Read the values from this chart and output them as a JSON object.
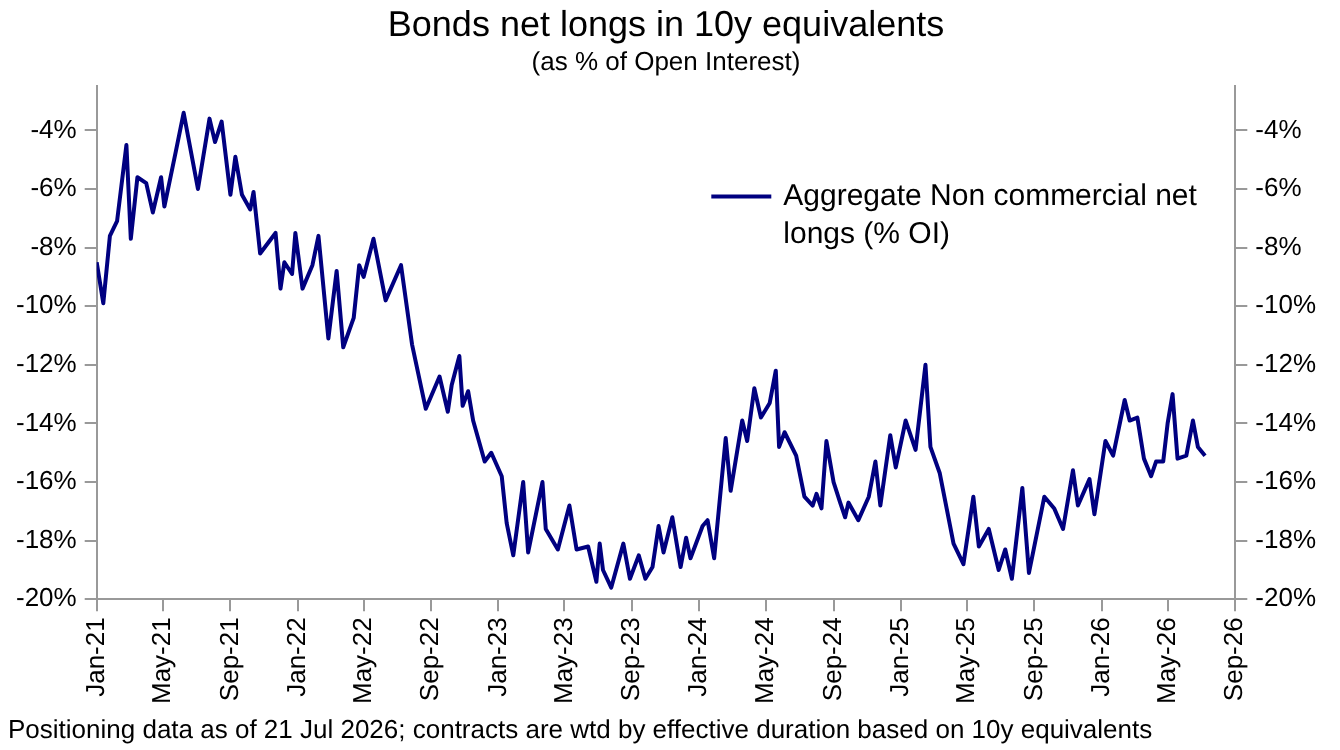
{
  "chart_data": {
    "type": "line",
    "title": "Bonds net longs in 10y equivalents",
    "subtitle": "(as % of Open Interest)",
    "x": [
      "2021-01-01",
      "2021-01-13",
      "2021-01-25",
      "2021-02-07",
      "2021-02-24",
      "2021-03-04",
      "2021-03-16",
      "2021-04-01",
      "2021-04-13",
      "2021-04-28",
      "2021-05-04",
      "2021-05-25",
      "2021-06-08",
      "2021-07-04",
      "2021-07-25",
      "2021-08-04",
      "2021-08-16",
      "2021-09-01",
      "2021-09-10",
      "2021-09-22",
      "2021-10-07",
      "2021-10-13",
      "2021-10-25",
      "2021-11-22",
      "2021-12-01",
      "2021-12-08",
      "2021-12-22",
      "2021-12-28",
      "2022-01-10",
      "2022-01-28",
      "2022-02-08",
      "2022-02-26",
      "2022-03-13",
      "2022-03-25",
      "2022-04-13",
      "2022-04-23",
      "2022-05-01",
      "2022-05-19",
      "2022-06-10",
      "2022-07-08",
      "2022-07-28",
      "2022-08-22",
      "2022-09-16",
      "2022-10-01",
      "2022-10-08",
      "2022-10-22",
      "2022-10-28",
      "2022-11-07",
      "2022-11-16",
      "2022-12-07",
      "2022-12-19",
      "2023-01-07",
      "2023-01-16",
      "2023-01-28",
      "2023-02-15",
      "2023-02-24",
      "2023-03-22",
      "2023-03-28",
      "2023-04-19",
      "2023-05-10",
      "2023-05-23",
      "2023-06-13",
      "2023-06-28",
      "2023-07-04",
      "2023-07-10",
      "2023-07-25",
      "2023-08-16",
      "2023-08-28",
      "2023-09-13",
      "2023-09-25",
      "2023-10-08",
      "2023-10-19",
      "2023-10-28",
      "2023-11-13",
      "2023-11-28",
      "2023-12-08",
      "2023-12-16",
      "2024-01-07",
      "2024-01-16",
      "2024-01-28",
      "2024-02-18",
      "2024-02-27",
      "2024-03-19",
      "2024-03-28",
      "2024-04-10",
      "2024-04-22",
      "2024-05-08",
      "2024-05-19",
      "2024-05-25",
      "2024-06-04",
      "2024-06-25",
      "2024-07-10",
      "2024-07-25",
      "2024-08-01",
      "2024-08-10",
      "2024-08-19",
      "2024-09-01",
      "2024-09-13",
      "2024-09-22",
      "2024-09-28",
      "2024-10-16",
      "2024-11-04",
      "2024-11-16",
      "2024-11-25",
      "2024-12-13",
      "2024-12-23",
      "2025-01-10",
      "2025-01-28",
      "2025-02-15",
      "2025-02-24",
      "2025-03-13",
      "2025-04-07",
      "2025-04-25",
      "2025-05-13",
      "2025-05-23",
      "2025-06-10",
      "2025-06-28",
      "2025-07-10",
      "2025-07-22",
      "2025-08-10",
      "2025-08-22",
      "2025-09-19",
      "2025-10-07",
      "2025-10-23",
      "2025-11-10",
      "2025-11-19",
      "2025-12-10",
      "2025-12-19",
      "2026-01-08",
      "2026-01-22",
      "2026-02-12",
      "2026-02-21",
      "2026-03-07",
      "2026-03-19",
      "2026-04-01",
      "2026-04-10",
      "2026-04-23",
      "2026-05-01",
      "2026-05-10",
      "2026-05-19",
      "2026-06-04",
      "2026-06-16",
      "2026-06-25",
      "2026-07-08"
    ],
    "series": [
      {
        "name": "Aggregate Non commercial net longs (% OI)",
        "color": "#000080",
        "values": [
          -8.5,
          -9.9,
          -7.6,
          -7.1,
          -4.5,
          -7.7,
          -5.6,
          -5.8,
          -6.8,
          -5.6,
          -6.6,
          -4.7,
          -3.4,
          -6.0,
          -3.6,
          -4.4,
          -3.7,
          -6.2,
          -4.9,
          -6.2,
          -6.7,
          -6.1,
          -8.2,
          -7.5,
          -9.4,
          -8.5,
          -8.9,
          -7.5,
          -9.4,
          -8.6,
          -7.6,
          -11.1,
          -8.8,
          -11.4,
          -10.4,
          -8.6,
          -9.0,
          -7.7,
          -9.8,
          -8.6,
          -11.3,
          -13.5,
          -12.4,
          -13.6,
          -12.7,
          -11.7,
          -13.4,
          -12.9,
          -13.9,
          -15.3,
          -15.0,
          -15.8,
          -17.4,
          -18.5,
          -16.0,
          -18.4,
          -16.0,
          -17.6,
          -18.3,
          -16.8,
          -18.3,
          -18.2,
          -19.4,
          -18.1,
          -19.0,
          -19.6,
          -18.1,
          -19.3,
          -18.5,
          -19.3,
          -18.9,
          -17.5,
          -18.4,
          -17.2,
          -18.9,
          -17.9,
          -18.6,
          -17.5,
          -17.3,
          -18.6,
          -14.5,
          -16.3,
          -13.9,
          -14.6,
          -12.8,
          -13.8,
          -13.3,
          -12.2,
          -14.8,
          -14.3,
          -15.1,
          -16.5,
          -16.8,
          -16.4,
          -16.9,
          -14.6,
          -16.0,
          -16.7,
          -17.2,
          -16.7,
          -17.3,
          -16.5,
          -15.3,
          -16.8,
          -14.4,
          -15.5,
          -13.9,
          -14.9,
          -12.0,
          -14.8,
          -15.7,
          -18.1,
          -18.8,
          -16.5,
          -18.2,
          -17.6,
          -19.0,
          -18.3,
          -19.3,
          -16.2,
          -19.1,
          -16.5,
          -16.9,
          -17.6,
          -15.6,
          -16.8,
          -15.9,
          -17.1,
          -14.6,
          -15.1,
          -13.2,
          -13.9,
          -13.8,
          -15.2,
          -15.8,
          -15.3,
          -15.3,
          -14.0,
          -13.0,
          -15.2,
          -15.1,
          -13.9,
          -14.8,
          -15.1
        ]
      }
    ],
    "xlim": [
      "2021-01",
      "2026-09"
    ],
    "xticks": [
      {
        "value": "2021-01",
        "label": "Jan-21"
      },
      {
        "value": "2021-05",
        "label": "May-21"
      },
      {
        "value": "2021-09",
        "label": "Sep-21"
      },
      {
        "value": "2022-01",
        "label": "Jan-22"
      },
      {
        "value": "2022-05",
        "label": "May-22"
      },
      {
        "value": "2022-09",
        "label": "Sep-22"
      },
      {
        "value": "2023-01",
        "label": "Jan-23"
      },
      {
        "value": "2023-05",
        "label": "May-23"
      },
      {
        "value": "2023-09",
        "label": "Sep-23"
      },
      {
        "value": "2024-01",
        "label": "Jan-24"
      },
      {
        "value": "2024-05",
        "label": "May-24"
      },
      {
        "value": "2024-09",
        "label": "Sep-24"
      },
      {
        "value": "2025-01",
        "label": "Jan-25"
      },
      {
        "value": "2025-05",
        "label": "May-25"
      },
      {
        "value": "2025-09",
        "label": "Sep-25"
      },
      {
        "value": "2026-01",
        "label": "Jan-26"
      },
      {
        "value": "2026-05",
        "label": "May-26"
      },
      {
        "value": "2026-09",
        "label": "Sep-26"
      }
    ],
    "ylim": [
      -20,
      -2.5
    ],
    "yticks": [
      {
        "value": -20,
        "label": "-20%"
      },
      {
        "value": -18,
        "label": "-18%"
      },
      {
        "value": -16,
        "label": "-16%"
      },
      {
        "value": -14,
        "label": "-14%"
      },
      {
        "value": -12,
        "label": "-12%"
      },
      {
        "value": -10,
        "label": "-10%"
      },
      {
        "value": -8,
        "label": "-8%"
      },
      {
        "value": -6,
        "label": "-6%"
      },
      {
        "value": -4,
        "label": "-4%"
      }
    ],
    "y2lim": [
      -20,
      -2.5
    ],
    "y2ticks": [
      {
        "value": -20,
        "label": "-20%"
      },
      {
        "value": -18,
        "label": "-18%"
      },
      {
        "value": -16,
        "label": "-16%"
      },
      {
        "value": -14,
        "label": "-14%"
      },
      {
        "value": -12,
        "label": "-12%"
      },
      {
        "value": -10,
        "label": "-10%"
      },
      {
        "value": -8,
        "label": "-8%"
      },
      {
        "value": -6,
        "label": "-6%"
      },
      {
        "value": -4,
        "label": "-4%"
      }
    ],
    "legend": "top right",
    "annotations": [
      "Positioning data as of 21 Jul 2026; contracts are wtd by effective duration based on 10y equivalents"
    ]
  }
}
